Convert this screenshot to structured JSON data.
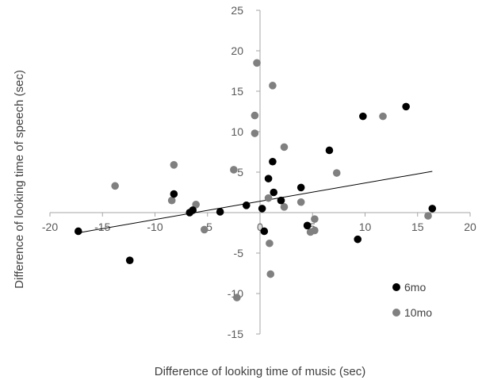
{
  "chart_data": {
    "type": "scatter",
    "title": "",
    "xlabel": "Difference of looking time of music (sec)",
    "ylabel": "Difference of looking time of speech (sec)",
    "xlim": [
      -20,
      20
    ],
    "ylim": [
      -15,
      25
    ],
    "x_ticks": [
      "-20",
      "-15",
      "-10",
      "-5",
      "0",
      "5",
      "10",
      "15",
      "20"
    ],
    "y_ticks": [
      "25",
      "20",
      "15",
      "10",
      "5",
      "0",
      "-5",
      "-10",
      "-15"
    ],
    "grid": false,
    "legend_position": "bottom-right",
    "series": [
      {
        "name": "6mo",
        "color": "#000000",
        "points": [
          [
            -17.3,
            -2.3
          ],
          [
            -12.4,
            -5.9
          ],
          [
            -8.2,
            2.3
          ],
          [
            -6.4,
            0.3
          ],
          [
            -6.7,
            0.0
          ],
          [
            -3.8,
            0.1
          ],
          [
            -1.3,
            0.9
          ],
          [
            0.2,
            0.5
          ],
          [
            0.4,
            -2.3
          ],
          [
            0.8,
            4.2
          ],
          [
            1.2,
            6.3
          ],
          [
            1.3,
            2.5
          ],
          [
            2.0,
            1.5
          ],
          [
            3.9,
            3.1
          ],
          [
            4.5,
            -1.6
          ],
          [
            6.6,
            7.7
          ],
          [
            9.3,
            -3.3
          ],
          [
            9.8,
            11.9
          ],
          [
            13.9,
            13.1
          ],
          [
            16.4,
            0.5
          ]
        ]
      },
      {
        "name": "10mo",
        "color": "#808080",
        "points": [
          [
            -13.8,
            3.3
          ],
          [
            -8.4,
            1.5
          ],
          [
            -8.2,
            5.9
          ],
          [
            -6.1,
            1.0
          ],
          [
            -5.3,
            -2.1
          ],
          [
            -2.5,
            5.3
          ],
          [
            -0.5,
            9.8
          ],
          [
            -0.5,
            12.0
          ],
          [
            -0.3,
            18.5
          ],
          [
            0.8,
            1.8
          ],
          [
            0.9,
            -3.8
          ],
          [
            1.0,
            -7.6
          ],
          [
            1.2,
            15.7
          ],
          [
            2.3,
            0.7
          ],
          [
            2.3,
            8.1
          ],
          [
            3.9,
            1.3
          ],
          [
            4.8,
            -2.4
          ],
          [
            5.2,
            -0.8
          ],
          [
            5.2,
            -2.2
          ],
          [
            7.3,
            4.9
          ],
          [
            11.7,
            11.9
          ],
          [
            16.0,
            -0.4
          ],
          [
            -2.2,
            -10.5
          ]
        ]
      }
    ],
    "trendline": {
      "x": [
        -17.3,
        16.4
      ],
      "y": [
        -2.5,
        5.1
      ]
    }
  }
}
